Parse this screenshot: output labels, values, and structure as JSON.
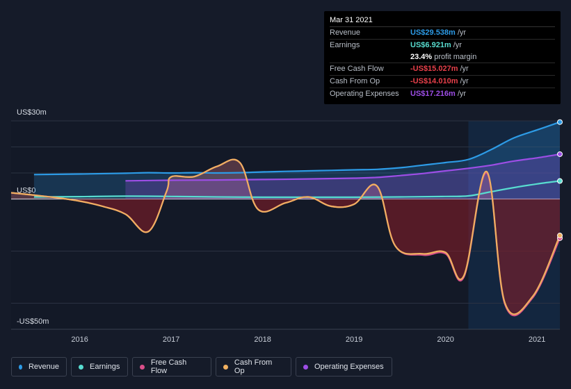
{
  "chart_data": {
    "type": "line",
    "y_unit": "US$ m",
    "ylim": [
      -50,
      30
    ],
    "y_tick_labels": [
      {
        "value": 30,
        "label": "US$30m"
      },
      {
        "value": 0,
        "label": "US$0"
      },
      {
        "value": -50,
        "label": "-US$50m"
      }
    ],
    "x_ticks": [
      "2016",
      "2017",
      "2018",
      "2019",
      "2020",
      "2021"
    ],
    "x_tick_values": [
      2016,
      2017,
      2018,
      2019,
      2020,
      2021
    ],
    "xlim": [
      2015.25,
      2021.25
    ],
    "future_region_start": 2020.25,
    "series": [
      {
        "name": "Revenue",
        "color": "#2d9be6",
        "fill": true,
        "points": [
          [
            2015.5,
            9.4
          ],
          [
            2016.0,
            9.6
          ],
          [
            2016.5,
            9.9
          ],
          [
            2016.75,
            10.1
          ],
          [
            2017.0,
            10.0
          ],
          [
            2017.25,
            10.1
          ],
          [
            2017.5,
            10.0
          ],
          [
            2017.75,
            10.1
          ],
          [
            2018.0,
            10.4
          ],
          [
            2018.25,
            10.6
          ],
          [
            2018.5,
            10.8
          ],
          [
            2018.75,
            11.0
          ],
          [
            2019.0,
            11.2
          ],
          [
            2019.25,
            11.4
          ],
          [
            2019.5,
            12.0
          ],
          [
            2019.75,
            13.0
          ],
          [
            2020.0,
            14.0
          ],
          [
            2020.25,
            15.2
          ],
          [
            2020.5,
            19.0
          ],
          [
            2020.75,
            23.5
          ],
          [
            2021.0,
            26.5
          ],
          [
            2021.25,
            29.538
          ]
        ]
      },
      {
        "name": "Earnings",
        "color": "#58ddd0",
        "fill": false,
        "points": [
          [
            2015.5,
            0.8
          ],
          [
            2016.0,
            0.9
          ],
          [
            2016.5,
            1.1
          ],
          [
            2017.0,
            1.0
          ],
          [
            2017.5,
            0.8
          ],
          [
            2018.0,
            0.7
          ],
          [
            2018.5,
            0.7
          ],
          [
            2019.0,
            0.7
          ],
          [
            2019.5,
            0.8
          ],
          [
            2020.0,
            1.0
          ],
          [
            2020.25,
            1.2
          ],
          [
            2020.5,
            2.8
          ],
          [
            2020.75,
            4.4
          ],
          [
            2021.0,
            5.8
          ],
          [
            2021.25,
            6.921
          ]
        ]
      },
      {
        "name": "Free Cash Flow",
        "color": "#d94f8a",
        "fill": false,
        "points": [
          [
            2015.25,
            2.4
          ],
          [
            2015.5,
            1.5
          ],
          [
            2015.75,
            0.5
          ],
          [
            2016.0,
            -0.8
          ],
          [
            2016.25,
            -2.8
          ],
          [
            2016.5,
            -5.8
          ],
          [
            2016.75,
            -12.5
          ],
          [
            2016.95,
            3.0
          ],
          [
            2017.0,
            8.5
          ],
          [
            2017.25,
            8.6
          ],
          [
            2017.5,
            12.5
          ],
          [
            2017.75,
            14.0
          ],
          [
            2017.95,
            -4.0
          ],
          [
            2018.25,
            -1.5
          ],
          [
            2018.5,
            0.8
          ],
          [
            2018.75,
            -2.8
          ],
          [
            2019.0,
            -2.0
          ],
          [
            2019.25,
            5.0
          ],
          [
            2019.45,
            -18.0
          ],
          [
            2019.75,
            -21.5
          ],
          [
            2020.0,
            -21.0
          ],
          [
            2020.2,
            -30.0
          ],
          [
            2020.45,
            10.0
          ],
          [
            2020.65,
            -40.5
          ],
          [
            2020.95,
            -38.0
          ],
          [
            2021.25,
            -15.027
          ]
        ]
      },
      {
        "name": "Cash From Op",
        "color": "#f0b060",
        "fill": true,
        "points": [
          [
            2015.25,
            2.4
          ],
          [
            2015.5,
            1.5
          ],
          [
            2015.75,
            0.5
          ],
          [
            2016.0,
            -0.8
          ],
          [
            2016.25,
            -2.8
          ],
          [
            2016.5,
            -5.8
          ],
          [
            2016.75,
            -12.5
          ],
          [
            2016.95,
            3.0
          ],
          [
            2017.0,
            8.5
          ],
          [
            2017.25,
            8.6
          ],
          [
            2017.5,
            12.5
          ],
          [
            2017.75,
            14.0
          ],
          [
            2017.95,
            -4.0
          ],
          [
            2018.25,
            -1.5
          ],
          [
            2018.5,
            0.8
          ],
          [
            2018.75,
            -2.8
          ],
          [
            2019.0,
            -2.0
          ],
          [
            2019.25,
            5.0
          ],
          [
            2019.45,
            -18.0
          ],
          [
            2019.75,
            -21.0
          ],
          [
            2020.0,
            -20.5
          ],
          [
            2020.2,
            -29.5
          ],
          [
            2020.45,
            10.5
          ],
          [
            2020.65,
            -40.0
          ],
          [
            2020.95,
            -37.5
          ],
          [
            2021.25,
            -14.01
          ]
        ]
      },
      {
        "name": "Operating Expenses",
        "color": "#9d4ee6",
        "fill": true,
        "points": [
          [
            2016.5,
            7.0
          ],
          [
            2017.0,
            7.2
          ],
          [
            2017.5,
            7.3
          ],
          [
            2018.0,
            7.5
          ],
          [
            2018.5,
            7.7
          ],
          [
            2019.0,
            8.0
          ],
          [
            2019.25,
            8.3
          ],
          [
            2019.5,
            9.0
          ],
          [
            2019.75,
            9.8
          ],
          [
            2020.0,
            10.8
          ],
          [
            2020.25,
            11.8
          ],
          [
            2020.5,
            13.0
          ],
          [
            2020.75,
            14.6
          ],
          [
            2021.0,
            15.8
          ],
          [
            2021.25,
            17.216
          ]
        ]
      }
    ]
  },
  "tooltip": {
    "date": "Mar 31 2021",
    "rows": [
      {
        "label": "Revenue",
        "value": "US$29.538m",
        "suffix": "/yr",
        "color": "#2d9be6"
      },
      {
        "label": "Earnings",
        "value": "US$6.921m",
        "suffix": "/yr",
        "color": "#58ddd0"
      },
      {
        "label": "",
        "value": "23.4%",
        "suffix": "profit margin",
        "color": "#ffffff"
      },
      {
        "label": "Free Cash Flow",
        "value": "-US$15.027m",
        "suffix": "/yr",
        "color": "#e8404a"
      },
      {
        "label": "Cash From Op",
        "value": "-US$14.010m",
        "suffix": "/yr",
        "color": "#e8404a"
      },
      {
        "label": "Operating Expenses",
        "value": "US$17.216m",
        "suffix": "/yr",
        "color": "#9d4ee6"
      }
    ]
  },
  "legend": [
    {
      "label": "Revenue",
      "color": "#2d9be6"
    },
    {
      "label": "Earnings",
      "color": "#58ddd0"
    },
    {
      "label": "Free Cash Flow",
      "color": "#d94f8a"
    },
    {
      "label": "Cash From Op",
      "color": "#f0b060"
    },
    {
      "label": "Operating Expenses",
      "color": "#9d4ee6"
    }
  ]
}
